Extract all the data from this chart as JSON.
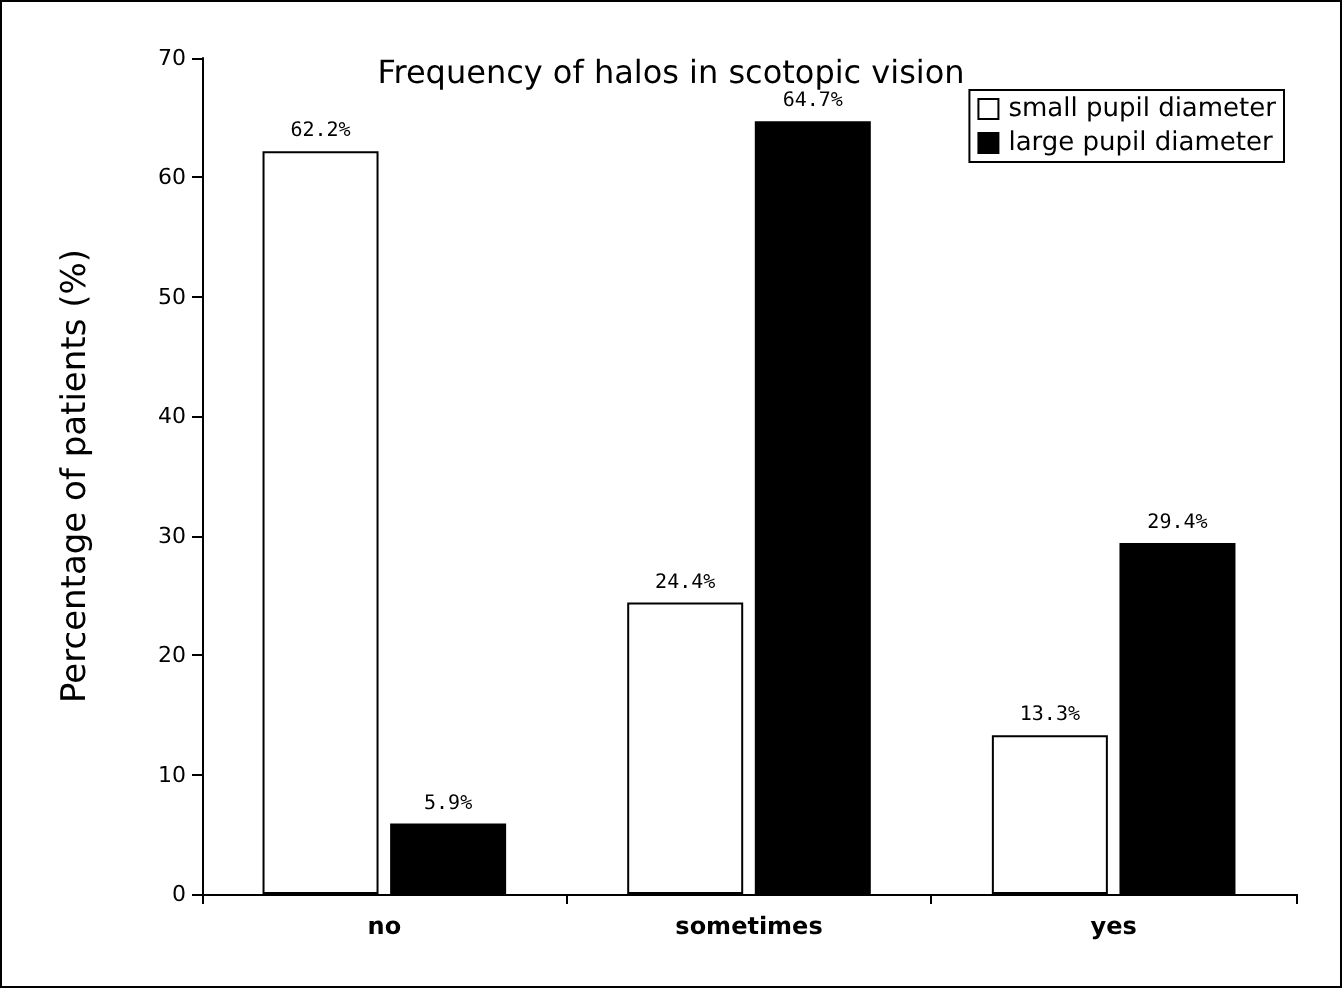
{
  "chart_data": {
    "type": "bar",
    "title": "Frequency of halos in scotopic vision",
    "ylabel": "Percentage of patients (%)",
    "categories": [
      "no",
      "sometimes",
      "yes"
    ],
    "series": [
      {
        "name": "small pupil diameter",
        "color": "#ffffff",
        "values": [
          62.2,
          24.4,
          13.3
        ],
        "value_labels": [
          "62.2%",
          "24.4%",
          "13.3%"
        ]
      },
      {
        "name": "large pupil diameter",
        "color": "#000000",
        "values": [
          5.9,
          64.7,
          29.4
        ],
        "value_labels": [
          "5.9%",
          "64.7%",
          "29.4%"
        ]
      }
    ],
    "ylim": [
      0,
      70
    ],
    "yticks": [
      0,
      10,
      20,
      30,
      40,
      50,
      60,
      70
    ],
    "grid": false,
    "legend": "top right"
  }
}
